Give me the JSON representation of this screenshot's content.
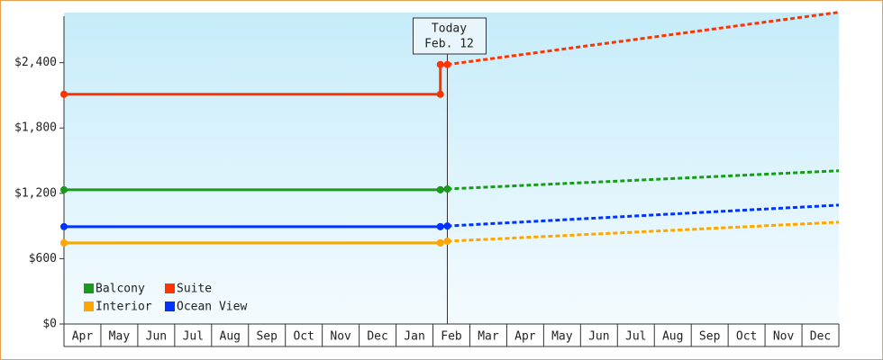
{
  "chart_data": {
    "type": "line",
    "today": {
      "x": 10.39,
      "label": "Today",
      "date": "Feb. 12"
    },
    "categories": [
      "Apr",
      "May",
      "Jun",
      "Jul",
      "Aug",
      "Sep",
      "Oct",
      "Nov",
      "Dec",
      "Jan",
      "Feb",
      "Mar",
      "Apr",
      "May",
      "Jun",
      "Jul",
      "Aug",
      "Sep",
      "Oct",
      "Nov",
      "Dec"
    ],
    "xlim": [
      0,
      21
    ],
    "ylim": [
      0,
      2860
    ],
    "yticks": [
      {
        "value": 0,
        "label": "$0"
      },
      {
        "value": 600,
        "label": "$600"
      },
      {
        "value": 1200,
        "label": "$1,200"
      },
      {
        "value": 1800,
        "label": "$1,800"
      },
      {
        "value": 2400,
        "label": "$2,400"
      }
    ],
    "legend": "bottom-left",
    "series": [
      {
        "name": "Balcony",
        "color": "#1a9a1a",
        "x": [
          0,
          10.2,
          10.2,
          10.39,
          21
        ],
        "values": [
          1233,
          1233,
          1233,
          1240,
          1407
        ]
      },
      {
        "name": "Suite",
        "color": "#ff3300",
        "x": [
          0,
          10.2,
          10.2,
          10.39,
          21
        ],
        "values": [
          2110,
          2110,
          2383,
          2383,
          2863
        ]
      },
      {
        "name": "Interior",
        "color": "#ffa500",
        "x": [
          0,
          10.2,
          10.2,
          10.39,
          21
        ],
        "values": [
          745,
          745,
          745,
          760,
          935
        ]
      },
      {
        "name": "Ocean View",
        "color": "#0033ff",
        "x": [
          0,
          10.2,
          10.2,
          10.39,
          21
        ],
        "values": [
          894,
          894,
          894,
          900,
          1092
        ]
      }
    ]
  }
}
